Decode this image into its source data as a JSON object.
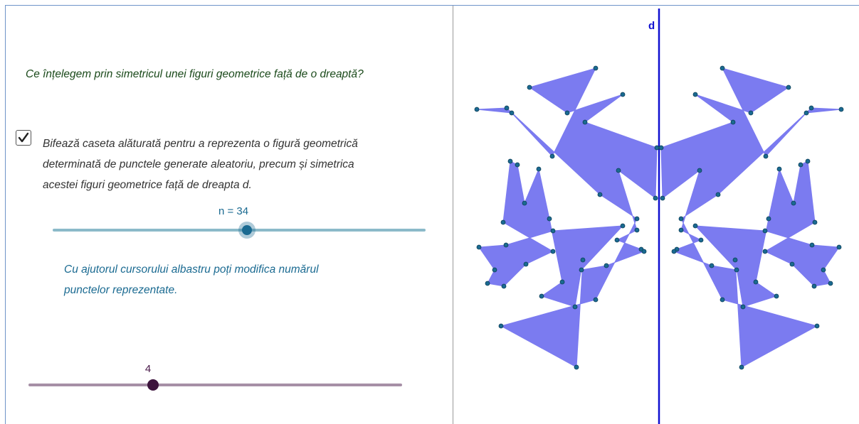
{
  "question": "Ce înțelegem prin simetricul unei figuri geometrice față de o dreaptă?",
  "checkbox": {
    "checked": true,
    "line1": "Bifează caseta alăturată pentru a reprezenta o figură geometrică",
    "line2": "determinată de  punctele generate aleatoriu, precum și simetrica",
    "line3": "acestei figuri geometrice față de dreapta d."
  },
  "slider_n": {
    "label": "n = 34",
    "value": 34,
    "min": 3,
    "max": 63,
    "color": "#1a6a91"
  },
  "hint": {
    "line1": "Cu ajutorul cursorului albastru poți modifica numărul",
    "line2": "punctelor reprezentate."
  },
  "slider_second": {
    "label": "4",
    "value": 4,
    "min": 1,
    "max": 10,
    "color": "#4a1a4a"
  },
  "graphics": {
    "line_label": "d",
    "axis_color": "#1010d0",
    "fill_color": "#7b7bf0",
    "point_color": "#1a6a91"
  }
}
